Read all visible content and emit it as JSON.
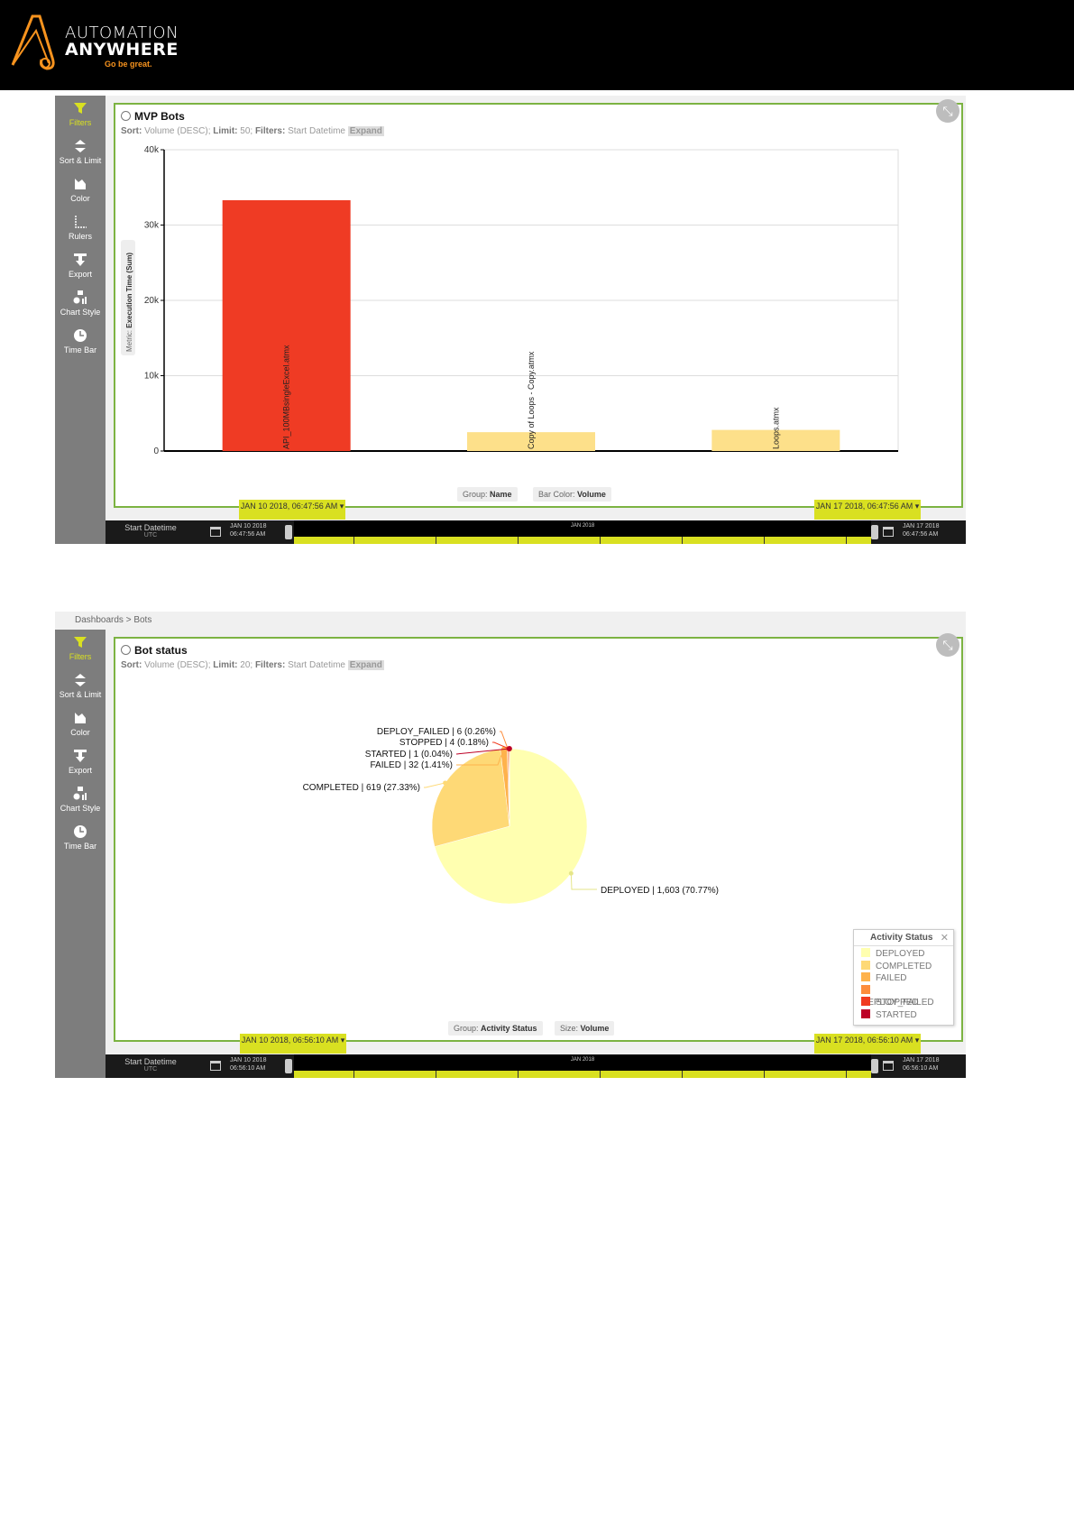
{
  "header": {
    "brand_line1": "AUTOMATION",
    "brand_line2": "ANYWHERE",
    "tagline": "Go be great."
  },
  "colors": {
    "accent_green": "#7cb342",
    "timebar_yellow": "#d9e021",
    "bar_red": "#ef3b24",
    "bar_light": "#fde08a"
  },
  "panel1": {
    "toolbar": [
      "Filters",
      "Sort & Limit",
      "Color",
      "Rulers",
      "Export",
      "Chart Style",
      "Time Bar"
    ],
    "title": "MVP Bots",
    "subtitle": {
      "sort_label": "Sort:",
      "sort_value": "Volume (DESC);",
      "limit_label": "Limit:",
      "limit_value": "50;",
      "filters_label": "Filters:",
      "filters_value": "Start Datetime",
      "expand": "Expand"
    },
    "metric_label": "Metric:",
    "metric_value": "Execution Time (Sum)",
    "group_label": "Group:",
    "group_value": "Name",
    "barcolor_label": "Bar Color:",
    "barcolor_value": "Volume",
    "timebar": {
      "label": "Start Datetime",
      "tz": "UTC",
      "start_date": "JAN 10 2018",
      "start_time": "06:47:56 AM",
      "end_date": "JAN 17 2018",
      "end_time": "06:47:56 AM",
      "month": "JAN 2018",
      "flag_start": "JAN 10 2018, 06:47:56 AM",
      "flag_end": "JAN 17 2018, 06:47:56 AM"
    }
  },
  "panel2": {
    "breadcrumb": "Dashboards  >  Bots",
    "toolbar": [
      "Filters",
      "Sort & Limit",
      "Color",
      "Export",
      "Chart Style",
      "Time Bar"
    ],
    "title": "Bot status",
    "subtitle": {
      "sort_label": "Sort:",
      "sort_value": "Volume (DESC);",
      "limit_label": "Limit:",
      "limit_value": "20;",
      "filters_label": "Filters:",
      "filters_value": "Start Datetime",
      "expand": "Expand"
    },
    "group_label": "Group:",
    "group_value": "Activity Status",
    "size_label": "Size:",
    "size_value": "Volume",
    "legend_title": "Activity Status",
    "timebar": {
      "label": "Start Datetime",
      "tz": "UTC",
      "start_date": "JAN 10 2018",
      "start_time": "06:56:10 AM",
      "end_date": "JAN 17 2018",
      "end_time": "06:56:10 AM",
      "month": "JAN 2018",
      "flag_start": "JAN 10 2018, 06:56:10 AM",
      "flag_end": "JAN 17 2018, 06:56:10 AM"
    }
  },
  "chart_data": [
    {
      "type": "bar",
      "title": "MVP Bots",
      "categories": [
        "API_100MBsingleExcel.atmx",
        "Copy of Loops - Copy.atmx",
        "Loops.atmx"
      ],
      "values": [
        33300,
        2500,
        2800
      ],
      "colors": [
        "#ef3b24",
        "#fde08a",
        "#fde08a"
      ],
      "ylabel": "Execution Time (Sum)",
      "ylim": [
        0,
        40000
      ],
      "yticks": [
        "0",
        "10k",
        "20k",
        "30k",
        "40k"
      ],
      "grid": true
    },
    {
      "type": "pie",
      "title": "Bot status",
      "slices": [
        {
          "name": "DEPLOYED",
          "value": 1603,
          "pct": 70.77,
          "label": "DEPLOYED | 1,603 (70.77%)",
          "color": "#ffffb0"
        },
        {
          "name": "COMPLETED",
          "value": 619,
          "pct": 27.33,
          "label": "COMPLETED | 619 (27.33%)",
          "color": "#fed976"
        },
        {
          "name": "FAILED",
          "value": 32,
          "pct": 1.41,
          "label": "FAILED | 32 (1.41%)",
          "color": "#feb24c"
        },
        {
          "name": "DEPLOY_FAILED",
          "value": 6,
          "pct": 0.26,
          "label": "DEPLOY_FAILED | 6 (0.26%)",
          "color": "#fd8d3c"
        },
        {
          "name": "STOPPED",
          "value": 4,
          "pct": 0.18,
          "label": "STOPPED | 4 (0.18%)",
          "color": "#f03b20"
        },
        {
          "name": "STARTED",
          "value": 1,
          "pct": 0.04,
          "label": "STARTED | 1 (0.04%)",
          "color": "#bd0026"
        }
      ],
      "legend": "right-bottom"
    }
  ]
}
